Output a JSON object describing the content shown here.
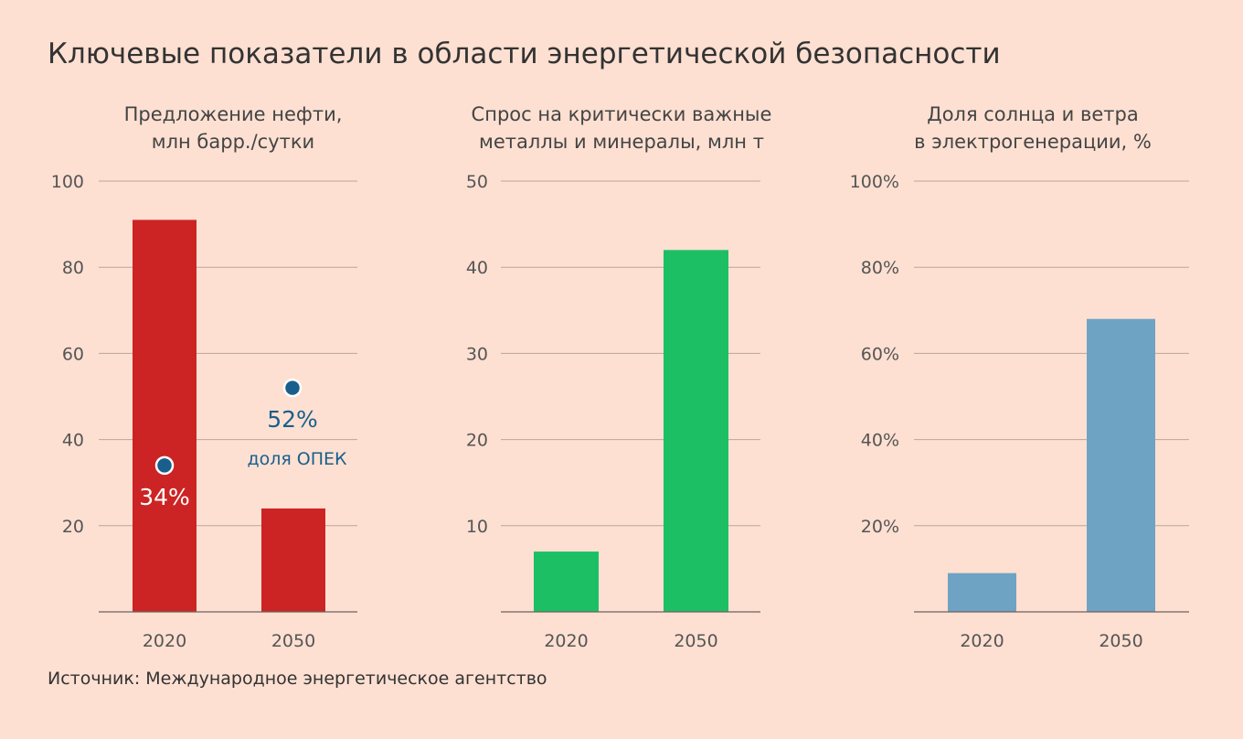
{
  "title": "Ключевые показатели в области энергетической безопасности",
  "source": "Источник: Международное энергетическое агентство",
  "colors": {
    "background": "#fde0d2",
    "red": "#cc2424",
    "green": "#1dbf64",
    "blue": "#6fa3c3",
    "dot": "#195f8c",
    "grid": "#b9a69c",
    "axis": "#6e625c"
  },
  "chart_data": [
    {
      "type": "bar",
      "title": [
        "Предложение нефти,",
        "млн барр./сутки"
      ],
      "categories": [
        "2020",
        "2050"
      ],
      "values": [
        91,
        24
      ],
      "ylim": [
        0,
        100
      ],
      "yticks": [
        20,
        40,
        60,
        80,
        100
      ],
      "ytick_labels": [
        "20",
        "40",
        "60",
        "80",
        "100"
      ],
      "color": "#cc2424",
      "grid": true,
      "markers": [
        {
          "category": "2020",
          "value": 34,
          "label": "34%",
          "label_color": "#ffffff"
        },
        {
          "category": "2050",
          "value": 52,
          "label": "52%",
          "label_color": "#195f8c",
          "sublabel": "доля ОПЕК"
        }
      ]
    },
    {
      "type": "bar",
      "title": [
        "Спрос на критически важные",
        "металлы и минералы, млн т"
      ],
      "categories": [
        "2020",
        "2050"
      ],
      "values": [
        7,
        42
      ],
      "ylim": [
        0,
        50
      ],
      "yticks": [
        10,
        20,
        30,
        40,
        50
      ],
      "ytick_labels": [
        "10",
        "20",
        "30",
        "40",
        "50"
      ],
      "color": "#1dbf64",
      "grid": true
    },
    {
      "type": "bar",
      "title": [
        "Доля солнца и ветра",
        "в электрогенерации, %"
      ],
      "categories": [
        "2020",
        "2050"
      ],
      "values": [
        9,
        68
      ],
      "ylim": [
        0,
        100
      ],
      "yticks": [
        20,
        40,
        60,
        80,
        100
      ],
      "ytick_labels": [
        "20%",
        "40%",
        "60%",
        "80%",
        "100%"
      ],
      "color": "#6fa3c3",
      "grid": true
    }
  ]
}
